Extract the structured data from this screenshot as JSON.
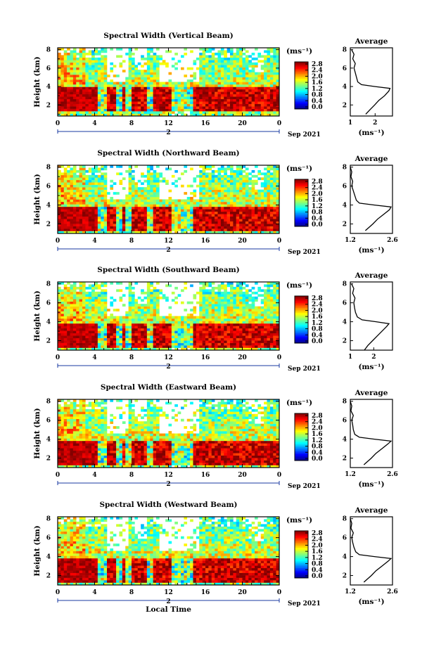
{
  "figure": {
    "xlabel": "Local Time",
    "colorbar_unit": "(ms⁻¹)",
    "colorbar_ticks": [
      "0.0",
      "0.4",
      "0.8",
      "1.2",
      "1.6",
      "2.0",
      "2.4",
      "2.8"
    ],
    "avg_title": "Average",
    "avg_xlabel": "(ms⁻¹)",
    "day_label": "2",
    "date_label": "Sep 2021",
    "height_label": "Height (km)",
    "colors": {
      "low": "#101070",
      "mid": "#20c8e0",
      "high": "#ff3a1a",
      "background": "#ffffff"
    }
  },
  "chart_data": [
    {
      "type": "heatmap",
      "title": "Spectral Width (Vertical Beam)",
      "ylabel": "Height (km)",
      "xlabel": "",
      "x_ticks": [
        "0",
        "4",
        "8",
        "12",
        "16",
        "20",
        "0"
      ],
      "y_ticks": [
        "2",
        "4",
        "6",
        "8"
      ],
      "xlim": [
        0,
        24
      ],
      "ylim": [
        0.8,
        8.2
      ],
      "colorbar_range": [
        0.0,
        2.8
      ],
      "strong_layer_km": [
        1.3,
        3.9
      ],
      "average_profile": {
        "xlim": [
          1.0,
          2.7
        ],
        "x_ticks": [
          "1",
          "2"
        ],
        "y_ticks": [
          "2",
          "4",
          "6",
          "8"
        ],
        "height_km": [
          1.0,
          1.5,
          2.0,
          2.5,
          3.0,
          3.5,
          3.8,
          4.0,
          4.2,
          4.5,
          5.0,
          5.5,
          6.0,
          6.5,
          7.0,
          7.5,
          8.0
        ],
        "width": [
          1.62,
          1.8,
          1.98,
          2.15,
          2.38,
          2.55,
          2.6,
          2.0,
          1.45,
          1.3,
          1.25,
          1.2,
          1.15,
          1.2,
          1.1,
          1.15,
          1.05
        ]
      }
    },
    {
      "type": "heatmap",
      "title": "Spectral Width (Northward Beam)",
      "ylabel": "Height (km)",
      "xlabel": "",
      "x_ticks": [
        "0",
        "4",
        "8",
        "12",
        "16",
        "20",
        "0"
      ],
      "y_ticks": [
        "2",
        "4",
        "6",
        "8"
      ],
      "xlim": [
        0,
        24
      ],
      "ylim": [
        1.0,
        8.2
      ],
      "colorbar_range": [
        0.0,
        2.8
      ],
      "strong_layer_km": [
        1.3,
        3.9
      ],
      "average_profile": {
        "xlim": [
          1.2,
          2.6
        ],
        "x_ticks": [
          "1.2",
          "2.6"
        ],
        "y_ticks": [
          "2",
          "4",
          "6",
          "8"
        ],
        "height_km": [
          1.3,
          2.0,
          2.5,
          3.0,
          3.5,
          3.8,
          4.0,
          4.2,
          4.5,
          5.0,
          5.5,
          6.0,
          6.5,
          7.0,
          7.5,
          8.0
        ],
        "width": [
          1.7,
          1.95,
          2.1,
          2.3,
          2.5,
          2.55,
          2.0,
          1.5,
          1.4,
          1.35,
          1.3,
          1.25,
          1.28,
          1.22,
          1.25,
          1.2
        ]
      }
    },
    {
      "type": "heatmap",
      "title": "Spectral Width (Southward Beam)",
      "ylabel": "Height (km)",
      "xlabel": "",
      "x_ticks": [
        "0",
        "4",
        "8",
        "12",
        "16",
        "20",
        "0"
      ],
      "y_ticks": [
        "2",
        "4",
        "6",
        "8"
      ],
      "xlim": [
        0,
        24
      ],
      "ylim": [
        1.0,
        8.2
      ],
      "colorbar_range": [
        0.0,
        2.8
      ],
      "strong_layer_km": [
        1.3,
        3.9
      ],
      "average_profile": {
        "xlim": [
          1.0,
          2.8
        ],
        "x_ticks": [
          "1",
          "2"
        ],
        "y_ticks": [
          "2",
          "4",
          "6",
          "8"
        ],
        "height_km": [
          1.0,
          1.5,
          2.0,
          2.5,
          3.0,
          3.5,
          3.8,
          4.0,
          4.2,
          4.5,
          5.0,
          5.5,
          6.0,
          6.5,
          7.0,
          7.5,
          8.0
        ],
        "width": [
          1.6,
          1.75,
          1.95,
          2.15,
          2.35,
          2.55,
          2.65,
          2.1,
          1.5,
          1.3,
          1.22,
          1.18,
          1.15,
          1.2,
          1.1,
          1.15,
          1.05
        ]
      }
    },
    {
      "type": "heatmap",
      "title": "Spectral Width (Eastward Beam)",
      "ylabel": "Height (km)",
      "xlabel": "",
      "x_ticks": [
        "0",
        "4",
        "8",
        "12",
        "16",
        "20",
        "0"
      ],
      "y_ticks": [
        "2",
        "4",
        "6",
        "8"
      ],
      "xlim": [
        0,
        24
      ],
      "ylim": [
        1.0,
        8.2
      ],
      "colorbar_range": [
        0.0,
        2.8
      ],
      "strong_layer_km": [
        1.3,
        3.9
      ],
      "average_profile": {
        "xlim": [
          1.2,
          2.6
        ],
        "x_ticks": [
          "1.2",
          "2.6"
        ],
        "y_ticks": [
          "2",
          "4",
          "6",
          "8"
        ],
        "height_km": [
          1.3,
          2.0,
          2.5,
          3.0,
          3.5,
          3.8,
          4.0,
          4.2,
          4.5,
          5.0,
          5.5,
          6.0,
          6.5,
          7.0,
          7.5,
          8.0
        ],
        "width": [
          1.65,
          1.9,
          2.05,
          2.25,
          2.45,
          2.55,
          2.0,
          1.5,
          1.35,
          1.3,
          1.28,
          1.25,
          1.3,
          1.22,
          1.25,
          1.2
        ]
      }
    },
    {
      "type": "heatmap",
      "title": "Spectral Width (Westward Beam)",
      "ylabel": "Height (km)",
      "xlabel": "Local Time",
      "x_ticks": [
        "0",
        "4",
        "8",
        "12",
        "16",
        "20",
        "0"
      ],
      "y_ticks": [
        "2",
        "4",
        "6",
        "8"
      ],
      "xlim": [
        0,
        24
      ],
      "ylim": [
        1.0,
        8.2
      ],
      "colorbar_range": [
        0.0,
        2.8
      ],
      "strong_layer_km": [
        1.3,
        3.9
      ],
      "average_profile": {
        "xlim": [
          1.2,
          2.6
        ],
        "x_ticks": [
          "1.2",
          "2.6"
        ],
        "y_ticks": [
          "2",
          "4",
          "6",
          "8"
        ],
        "height_km": [
          1.3,
          2.0,
          2.5,
          3.0,
          3.5,
          3.8,
          4.0,
          4.2,
          4.5,
          5.0,
          5.5,
          6.0,
          6.5,
          7.0,
          7.5,
          8.0
        ],
        "width": [
          1.65,
          1.9,
          2.05,
          2.25,
          2.45,
          2.55,
          2.0,
          1.5,
          1.38,
          1.32,
          1.28,
          1.25,
          1.3,
          1.22,
          1.25,
          1.2
        ]
      }
    }
  ]
}
